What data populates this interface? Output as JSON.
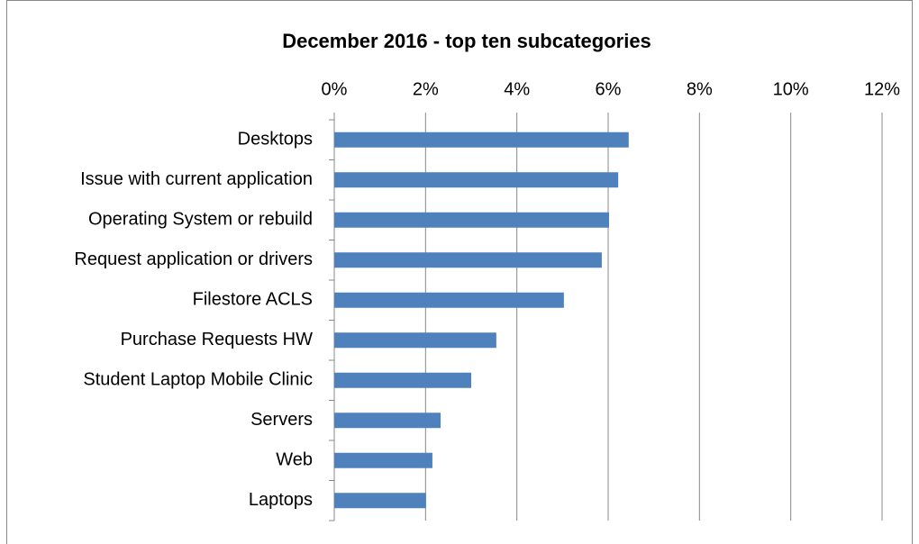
{
  "chart_data": {
    "type": "barh",
    "title": "December 2016 - top ten subcategories",
    "categories": [
      "Desktops",
      "Issue with current application",
      "Operating System or rebuild",
      "Request application or drivers",
      "Filestore ACLS",
      "Purchase Requests HW",
      "Student Laptop Mobile Clinic",
      "Servers",
      "Web",
      "Laptops"
    ],
    "values": [
      6.45,
      6.22,
      6.02,
      5.86,
      5.03,
      3.55,
      3.0,
      2.33,
      2.15,
      2.01
    ],
    "color": "#4f81bd",
    "xlim": [
      0,
      12
    ],
    "xticks": [
      {
        "value": 0,
        "label": "0%"
      },
      {
        "value": 2,
        "label": "2%"
      },
      {
        "value": 4,
        "label": "4%"
      },
      {
        "value": 6,
        "label": "6%"
      },
      {
        "value": 8,
        "label": "8%"
      },
      {
        "value": 10,
        "label": "10%"
      },
      {
        "value": 12,
        "label": "12%"
      }
    ],
    "grid": true
  }
}
